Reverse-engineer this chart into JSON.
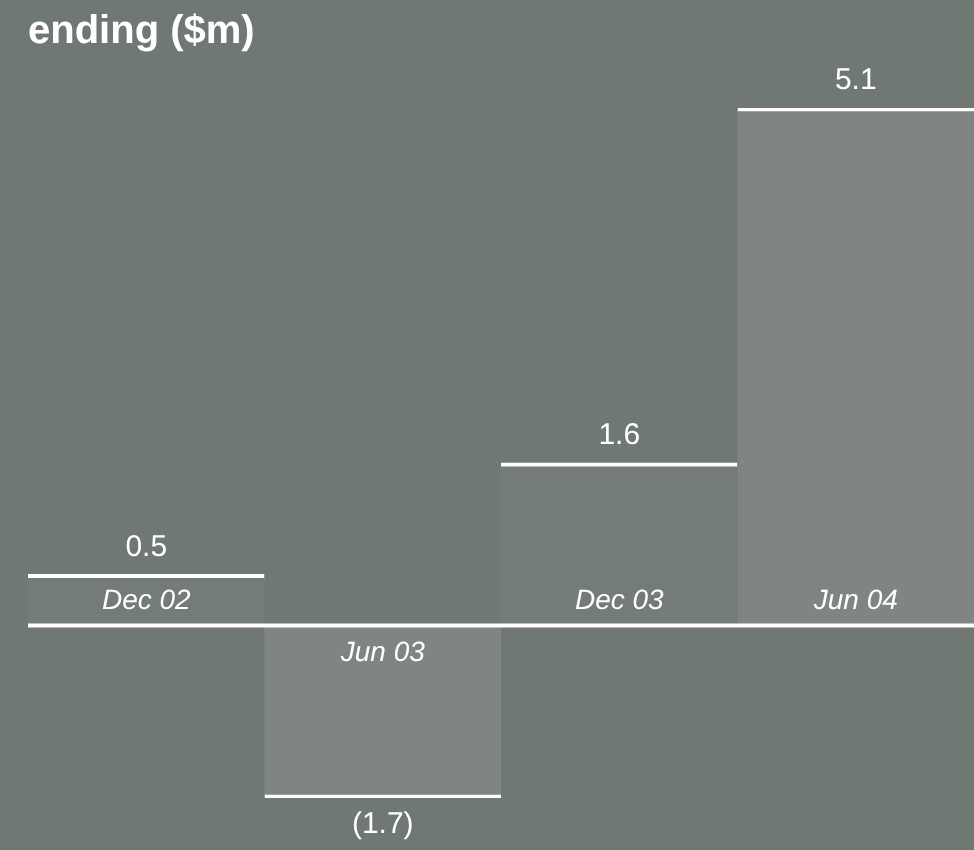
{
  "chart_data": {
    "type": "bar",
    "title": "ending ($m)",
    "categories": [
      "Dec 02",
      "Jun 03",
      "Dec 03",
      "Jun 04"
    ],
    "values": [
      0.5,
      -1.7,
      1.6,
      5.1
    ],
    "colors": [
      "#737c76",
      "#7f8582",
      "#737c76",
      "#7f8582"
    ],
    "value_labels": [
      "0.5",
      "(1.7)",
      "1.6",
      "5.1"
    ],
    "legend": false
  }
}
